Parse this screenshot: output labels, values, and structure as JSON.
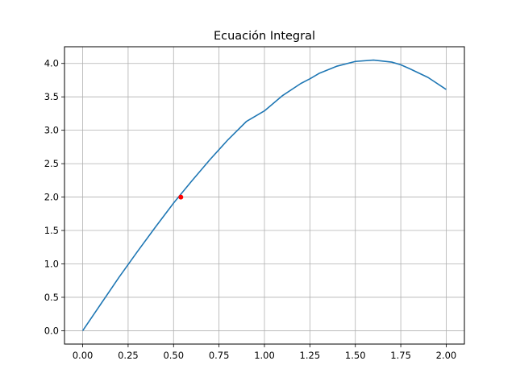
{
  "chart_data": {
    "type": "line",
    "title": "Ecuación Integral",
    "xlabel": "",
    "ylabel": "",
    "xlim": [
      -0.1,
      2.1
    ],
    "ylim": [
      -0.2,
      4.25
    ],
    "grid": true,
    "x_ticks": [
      0.0,
      0.25,
      0.5,
      0.75,
      1.0,
      1.25,
      1.5,
      1.75,
      2.0
    ],
    "x_tick_labels": [
      "0.00",
      "0.25",
      "0.50",
      "0.75",
      "1.00",
      "1.25",
      "1.50",
      "1.75",
      "2.00"
    ],
    "y_ticks": [
      0.0,
      0.5,
      1.0,
      1.5,
      2.0,
      2.5,
      3.0,
      3.5,
      4.0
    ],
    "y_tick_labels": [
      "0.0",
      "0.5",
      "1.0",
      "1.5",
      "2.0",
      "2.5",
      "3.0",
      "3.5",
      "4.0"
    ],
    "series": [
      {
        "color": "#1f77b4",
        "x": [
          0.0,
          0.1,
          0.2,
          0.25,
          0.3,
          0.4,
          0.5,
          0.6,
          0.7,
          0.75,
          0.8,
          0.9,
          1.0,
          1.1,
          1.2,
          1.25,
          1.3,
          1.4,
          1.5,
          1.6,
          1.7,
          1.75,
          1.8,
          1.9,
          2.0
        ],
        "y": [
          0.0,
          0.4,
          0.8,
          0.99,
          1.18,
          1.55,
          1.91,
          2.24,
          2.56,
          2.71,
          2.86,
          3.13,
          3.29,
          3.52,
          3.7,
          3.77,
          3.85,
          3.96,
          4.03,
          4.05,
          4.02,
          3.98,
          3.92,
          3.79,
          3.61
        ]
      }
    ],
    "points": [
      {
        "x": 0.54,
        "y": 2.0,
        "color": "#ff0000"
      }
    ]
  }
}
